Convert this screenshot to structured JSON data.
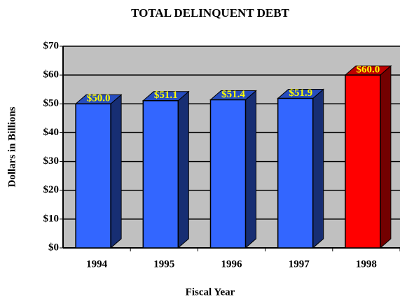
{
  "chart_data": {
    "type": "bar3d",
    "title": "TOTAL DELINQUENT DEBT",
    "x_label": "Fiscal Year",
    "y_label": "Dollars in Billions",
    "categories": [
      "1994",
      "1995",
      "1996",
      "1997",
      "1998"
    ],
    "values": [
      50.0,
      51.1,
      51.4,
      51.9,
      60.0
    ],
    "value_labels": [
      "$50.0",
      "$51.1",
      "$51.4",
      "$51.9",
      "$60.0"
    ],
    "colors": [
      "#3366ff",
      "#3366ff",
      "#3366ff",
      "#3366ff",
      "#ff0000"
    ],
    "ylim": [
      0,
      70
    ],
    "yticks": [
      {
        "value": 0,
        "label": "$0"
      },
      {
        "value": 10,
        "label": "$10"
      },
      {
        "value": 20,
        "label": "$20"
      },
      {
        "value": 30,
        "label": "$30"
      },
      {
        "value": 40,
        "label": "$40"
      },
      {
        "value": 50,
        "label": "$50"
      },
      {
        "value": 60,
        "label": "$60"
      },
      {
        "value": 70,
        "label": "$70"
      }
    ],
    "grid": true
  }
}
